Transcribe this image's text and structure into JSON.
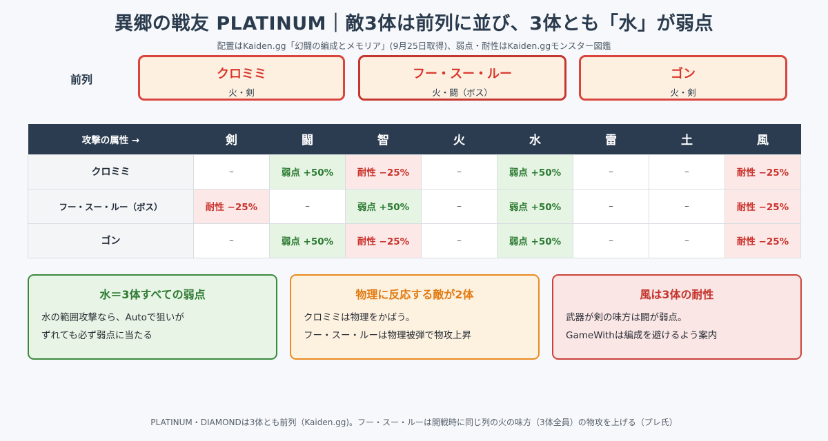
{
  "title": "異郷の戦友 PLATINUM｜敵3体は前列に並び、3体とも「水」が弱点",
  "subtitle": "配置はKaiden.gg「幻闘の編成とメモリア」(9月25日取得)、弱点・耐性はKaiden.ggモンスター図鑑",
  "front_row": {
    "label": "前列",
    "enemies": [
      {
        "name": "クロミミ",
        "attrs": "火・剣"
      },
      {
        "name": "フー・スー・ルー",
        "attrs": "火・闘（ボス）"
      },
      {
        "name": "ゴン",
        "attrs": "火・剣"
      }
    ]
  },
  "matrix": {
    "corner": "攻撃の属性 →",
    "columns": [
      "剣",
      "闘",
      "智",
      "火",
      "水",
      "雷",
      "土",
      "風"
    ],
    "rows": [
      {
        "name": "クロミミ",
        "cells": [
          "–",
          "弱点 +50%",
          "耐性 −25%",
          "–",
          "弱点 +50%",
          "–",
          "–",
          "耐性 −25%"
        ]
      },
      {
        "name": "フー・スー・ルー（ボス）",
        "cells": [
          "耐性 −25%",
          "–",
          "弱点 +50%",
          "–",
          "弱点 +50%",
          "–",
          "–",
          "耐性 −25%"
        ]
      },
      {
        "name": "ゴン",
        "cells": [
          "–",
          "弱点 +50%",
          "耐性 −25%",
          "–",
          "弱点 +50%",
          "–",
          "–",
          "耐性 −25%"
        ]
      }
    ]
  },
  "cards": [
    {
      "title": "水＝3体すべての弱点",
      "lines": [
        "水の範囲攻撃なら、Autoで狙いが",
        "ずれても必ず弱点に当たる"
      ]
    },
    {
      "title": "物理に反応する敵が2体",
      "lines": [
        "クロミミは物理をかばう。",
        "フー・スー・ルーは物理被弾で物攻上昇"
      ]
    },
    {
      "title": "風は3体の耐性",
      "lines": [
        "武器が剣の味方は闘が弱点。",
        "GameWithは編成を避けるよう案内"
      ]
    }
  ],
  "footer": "PLATINUM・DIAMONDは3体とも前列（Kaiden.gg)。フー・スー・ルーは開戦時に同じ列の火の味方（3体全員）の物攻を上げる（プレ氏）",
  "colors": {
    "weak_bg": "#e6f4e4",
    "weak_text": "#2b7a31",
    "resist_bg": "#fde8e8",
    "resist_text": "#c9332b",
    "header_bg": "#2b3c50",
    "enemy_border": "#d9453c"
  }
}
